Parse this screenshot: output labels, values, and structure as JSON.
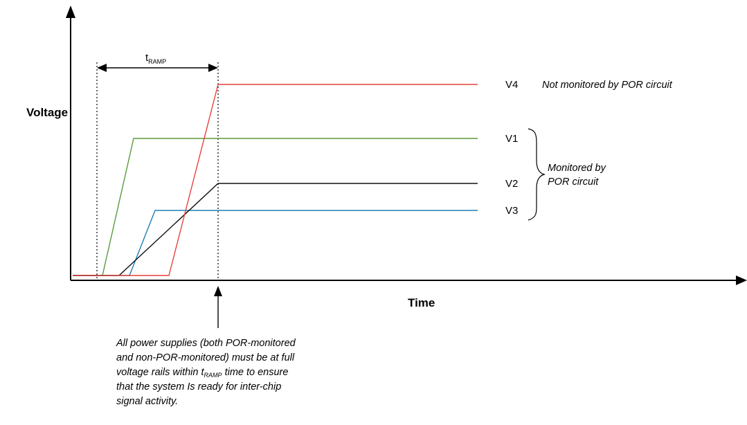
{
  "diagram": {
    "y_axis_label": "Voltage",
    "x_axis_label": "Time",
    "tramp": {
      "main": "t",
      "sub": "RAMP"
    },
    "series": [
      {
        "name": "V4",
        "color": "#e8413a"
      },
      {
        "name": "V1",
        "color": "#5a9a3c"
      },
      {
        "name": "V2",
        "color": "#111111"
      },
      {
        "name": "V3",
        "color": "#1f7fb5"
      }
    ],
    "v4_note": "Not monitored by POR circuit",
    "brace_note": [
      "Monitored by",
      "POR circuit"
    ],
    "footnote": {
      "line1": "All power supplies (both POR-monitored",
      "line2": "and non-POR-monitored) must be at full",
      "line3_before": "voltage rails within t",
      "line3_sub": "RAMP",
      "line3_after": " time to ensure",
      "line4": "that the system Is ready for inter-chip",
      "line5": "signal activity."
    }
  }
}
